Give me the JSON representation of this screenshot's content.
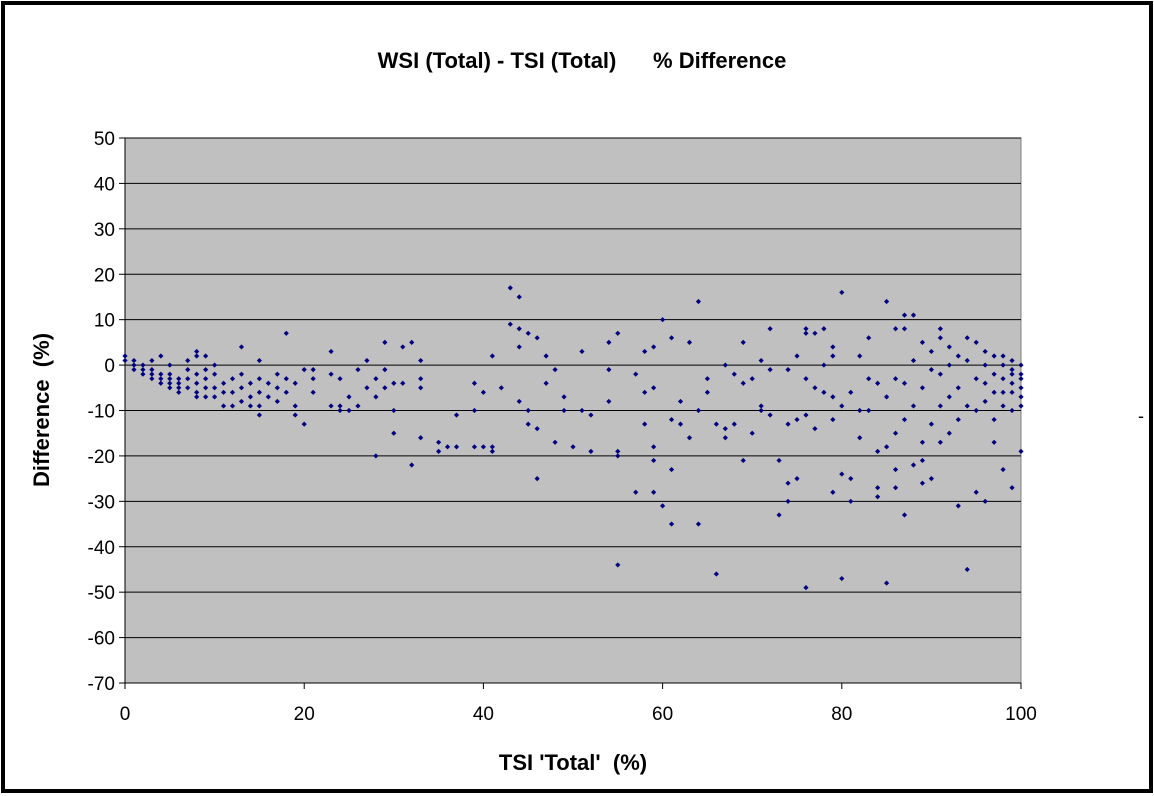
{
  "chart_data": {
    "type": "scatter",
    "title": "WSI (Total) - TSI (Total)      % Difference",
    "xlabel": "TSI 'Total'  (%)",
    "ylabel": "Difference  (%)",
    "xlim": [
      0,
      100
    ],
    "ylim": [
      -70,
      50
    ],
    "x_ticks": [
      "0",
      "20",
      "40",
      "60",
      "80",
      "100"
    ],
    "y_ticks": [
      "50",
      "40",
      "30",
      "20",
      "10",
      "0",
      "-10",
      "-20",
      "-30",
      "-40",
      "-50",
      "-60",
      "-70"
    ],
    "grid": true,
    "legend": "none",
    "colors": {
      "plot_background": "#c0c0c0",
      "marker": "#000080",
      "gridline": "#000000",
      "frame": "#000000"
    },
    "series": [
      {
        "points": [
          [
            0,
            1
          ],
          [
            0,
            2
          ],
          [
            1,
            0
          ],
          [
            1,
            -1
          ],
          [
            1,
            1
          ],
          [
            2,
            -1
          ],
          [
            2,
            -2
          ],
          [
            2,
            0
          ],
          [
            3,
            -1
          ],
          [
            3,
            -2
          ],
          [
            3,
            -3
          ],
          [
            3,
            1
          ],
          [
            4,
            -2
          ],
          [
            4,
            -3
          ],
          [
            4,
            -4
          ],
          [
            4,
            2
          ],
          [
            5,
            -2
          ],
          [
            5,
            -3
          ],
          [
            5,
            -4
          ],
          [
            5,
            -5
          ],
          [
            5,
            0
          ],
          [
            6,
            -3
          ],
          [
            6,
            -4
          ],
          [
            6,
            -5
          ],
          [
            6,
            -6
          ],
          [
            7,
            -1
          ],
          [
            7,
            -3
          ],
          [
            7,
            -5
          ],
          [
            7,
            1
          ],
          [
            8,
            -2
          ],
          [
            8,
            -4
          ],
          [
            8,
            -6
          ],
          [
            8,
            -7
          ],
          [
            8,
            3
          ],
          [
            8,
            2
          ],
          [
            9,
            -1
          ],
          [
            9,
            -3
          ],
          [
            9,
            -5
          ],
          [
            9,
            -7
          ],
          [
            9,
            2
          ],
          [
            10,
            -2
          ],
          [
            10,
            -5
          ],
          [
            10,
            -7
          ],
          [
            10,
            0
          ],
          [
            11,
            -4
          ],
          [
            11,
            -6
          ],
          [
            11,
            -9
          ],
          [
            12,
            -3
          ],
          [
            12,
            -6
          ],
          [
            12,
            -9
          ],
          [
            13,
            -2
          ],
          [
            13,
            -5
          ],
          [
            13,
            -8
          ],
          [
            13,
            4
          ],
          [
            14,
            -4
          ],
          [
            14,
            -7
          ],
          [
            14,
            -9
          ],
          [
            15,
            -3
          ],
          [
            15,
            -6
          ],
          [
            15,
            -9
          ],
          [
            15,
            -11
          ],
          [
            15,
            1
          ],
          [
            16,
            -4
          ],
          [
            16,
            -7
          ],
          [
            17,
            -2
          ],
          [
            17,
            -5
          ],
          [
            17,
            -8
          ],
          [
            18,
            -3
          ],
          [
            18,
            -6
          ],
          [
            18,
            7
          ],
          [
            19,
            -4
          ],
          [
            19,
            -9
          ],
          [
            19,
            -11
          ],
          [
            20,
            -1
          ],
          [
            20,
            -13
          ],
          [
            21,
            -3
          ],
          [
            21,
            -6
          ],
          [
            21,
            -1
          ],
          [
            23,
            -2
          ],
          [
            23,
            -9
          ],
          [
            23,
            3
          ],
          [
            24,
            -3
          ],
          [
            24,
            -9
          ],
          [
            24,
            -10
          ],
          [
            25,
            -7
          ],
          [
            25,
            -10
          ],
          [
            26,
            -1
          ],
          [
            26,
            -9
          ],
          [
            27,
            -5
          ],
          [
            27,
            1
          ],
          [
            28,
            -3
          ],
          [
            28,
            -7
          ],
          [
            28,
            -20
          ],
          [
            29,
            -1
          ],
          [
            29,
            -5
          ],
          [
            29,
            5
          ],
          [
            30,
            -4
          ],
          [
            30,
            -10
          ],
          [
            30,
            -15
          ],
          [
            31,
            -4
          ],
          [
            31,
            4
          ],
          [
            32,
            -22
          ],
          [
            32,
            5
          ],
          [
            33,
            -3
          ],
          [
            33,
            -5
          ],
          [
            33,
            1
          ],
          [
            33,
            -16
          ],
          [
            35,
            -17
          ],
          [
            35,
            -19
          ],
          [
            36,
            -18
          ],
          [
            37,
            -11
          ],
          [
            37,
            -18
          ],
          [
            39,
            -4
          ],
          [
            39,
            -10
          ],
          [
            39,
            -18
          ],
          [
            40,
            -6
          ],
          [
            40,
            -18
          ],
          [
            41,
            -18
          ],
          [
            41,
            -19
          ],
          [
            41,
            2
          ],
          [
            42,
            -5
          ],
          [
            43,
            17
          ],
          [
            43,
            9
          ],
          [
            44,
            15
          ],
          [
            44,
            8
          ],
          [
            44,
            4
          ],
          [
            44,
            -8
          ],
          [
            45,
            -10
          ],
          [
            45,
            7
          ],
          [
            45,
            -13
          ],
          [
            46,
            -14
          ],
          [
            46,
            6
          ],
          [
            46,
            -25
          ],
          [
            47,
            -4
          ],
          [
            47,
            2
          ],
          [
            48,
            -1
          ],
          [
            48,
            -17
          ],
          [
            49,
            -7
          ],
          [
            49,
            -10
          ],
          [
            50,
            -18
          ],
          [
            51,
            -10
          ],
          [
            51,
            3
          ],
          [
            52,
            -11
          ],
          [
            52,
            -19
          ],
          [
            54,
            5
          ],
          [
            54,
            -1
          ],
          [
            54,
            -8
          ],
          [
            55,
            -19
          ],
          [
            55,
            -20
          ],
          [
            55,
            7
          ],
          [
            55,
            -44
          ],
          [
            57,
            -2
          ],
          [
            57,
            -28
          ],
          [
            58,
            -6
          ],
          [
            58,
            3
          ],
          [
            58,
            -13
          ],
          [
            59,
            4
          ],
          [
            59,
            -5
          ],
          [
            59,
            -18
          ],
          [
            59,
            -21
          ],
          [
            59,
            -28
          ],
          [
            60,
            10
          ],
          [
            60,
            -31
          ],
          [
            61,
            6
          ],
          [
            61,
            -12
          ],
          [
            61,
            -23
          ],
          [
            61,
            -35
          ],
          [
            62,
            -8
          ],
          [
            62,
            -13
          ],
          [
            63,
            5
          ],
          [
            63,
            -16
          ],
          [
            64,
            14
          ],
          [
            64,
            -10
          ],
          [
            64,
            -35
          ],
          [
            65,
            -3
          ],
          [
            65,
            -6
          ],
          [
            66,
            -13
          ],
          [
            66,
            -46
          ],
          [
            67,
            0
          ],
          [
            67,
            -14
          ],
          [
            67,
            -16
          ],
          [
            68,
            -2
          ],
          [
            68,
            -13
          ],
          [
            69,
            5
          ],
          [
            69,
            -4
          ],
          [
            69,
            -21
          ],
          [
            70,
            -3
          ],
          [
            70,
            -15
          ],
          [
            71,
            -9
          ],
          [
            71,
            -10
          ],
          [
            71,
            1
          ],
          [
            72,
            8
          ],
          [
            72,
            -1
          ],
          [
            72,
            -11
          ],
          [
            73,
            -21
          ],
          [
            73,
            -33
          ],
          [
            74,
            -1
          ],
          [
            74,
            -13
          ],
          [
            74,
            -26
          ],
          [
            74,
            -30
          ],
          [
            75,
            2
          ],
          [
            75,
            -12
          ],
          [
            75,
            -25
          ],
          [
            76,
            8
          ],
          [
            76,
            7
          ],
          [
            76,
            -3
          ],
          [
            76,
            -11
          ],
          [
            76,
            -49
          ],
          [
            77,
            7
          ],
          [
            77,
            -5
          ],
          [
            77,
            -14
          ],
          [
            78,
            8
          ],
          [
            78,
            0
          ],
          [
            78,
            -6
          ],
          [
            79,
            4
          ],
          [
            79,
            2
          ],
          [
            79,
            -7
          ],
          [
            79,
            -12
          ],
          [
            79,
            -28
          ],
          [
            80,
            16
          ],
          [
            80,
            -9
          ],
          [
            80,
            -24
          ],
          [
            80,
            -47
          ],
          [
            81,
            -6
          ],
          [
            81,
            -25
          ],
          [
            81,
            -30
          ],
          [
            82,
            2
          ],
          [
            82,
            -10
          ],
          [
            82,
            -16
          ],
          [
            83,
            6
          ],
          [
            83,
            -3
          ],
          [
            83,
            -10
          ],
          [
            84,
            -4
          ],
          [
            84,
            -19
          ],
          [
            84,
            -27
          ],
          [
            84,
            -29
          ],
          [
            85,
            14
          ],
          [
            85,
            -7
          ],
          [
            85,
            -18
          ],
          [
            85,
            -48
          ],
          [
            86,
            8
          ],
          [
            86,
            -3
          ],
          [
            86,
            -15
          ],
          [
            86,
            -23
          ],
          [
            86,
            -27
          ],
          [
            87,
            11
          ],
          [
            87,
            8
          ],
          [
            87,
            -4
          ],
          [
            87,
            -12
          ],
          [
            87,
            -33
          ],
          [
            88,
            11
          ],
          [
            88,
            1
          ],
          [
            88,
            -9
          ],
          [
            88,
            -22
          ],
          [
            89,
            5
          ],
          [
            89,
            -5
          ],
          [
            89,
            -17
          ],
          [
            89,
            -21
          ],
          [
            89,
            -26
          ],
          [
            90,
            3
          ],
          [
            90,
            -1
          ],
          [
            90,
            -13
          ],
          [
            90,
            -25
          ],
          [
            91,
            8
          ],
          [
            91,
            6
          ],
          [
            91,
            -2
          ],
          [
            91,
            -9
          ],
          [
            91,
            -17
          ],
          [
            92,
            4
          ],
          [
            92,
            0
          ],
          [
            92,
            -7
          ],
          [
            92,
            -15
          ],
          [
            93,
            2
          ],
          [
            93,
            -5
          ],
          [
            93,
            -12
          ],
          [
            93,
            -31
          ],
          [
            94,
            6
          ],
          [
            94,
            1
          ],
          [
            94,
            -9
          ],
          [
            94,
            -45
          ],
          [
            95,
            5
          ],
          [
            95,
            -3
          ],
          [
            95,
            -10
          ],
          [
            95,
            -28
          ],
          [
            96,
            3
          ],
          [
            96,
            0
          ],
          [
            96,
            -4
          ],
          [
            96,
            -8
          ],
          [
            96,
            -30
          ],
          [
            97,
            2
          ],
          [
            97,
            -2
          ],
          [
            97,
            -6
          ],
          [
            97,
            -12
          ],
          [
            97,
            -17
          ],
          [
            98,
            2
          ],
          [
            98,
            0
          ],
          [
            98,
            -3
          ],
          [
            98,
            -6
          ],
          [
            98,
            -9
          ],
          [
            98,
            -23
          ],
          [
            99,
            1
          ],
          [
            99,
            -1
          ],
          [
            99,
            -2
          ],
          [
            99,
            -4
          ],
          [
            99,
            -6
          ],
          [
            99,
            -10
          ],
          [
            99,
            -27
          ],
          [
            100,
            0
          ],
          [
            100,
            -2
          ],
          [
            100,
            -3
          ],
          [
            100,
            -5
          ],
          [
            100,
            -7
          ],
          [
            100,
            -9
          ],
          [
            100,
            -19
          ]
        ]
      }
    ]
  },
  "side_mark": "-"
}
